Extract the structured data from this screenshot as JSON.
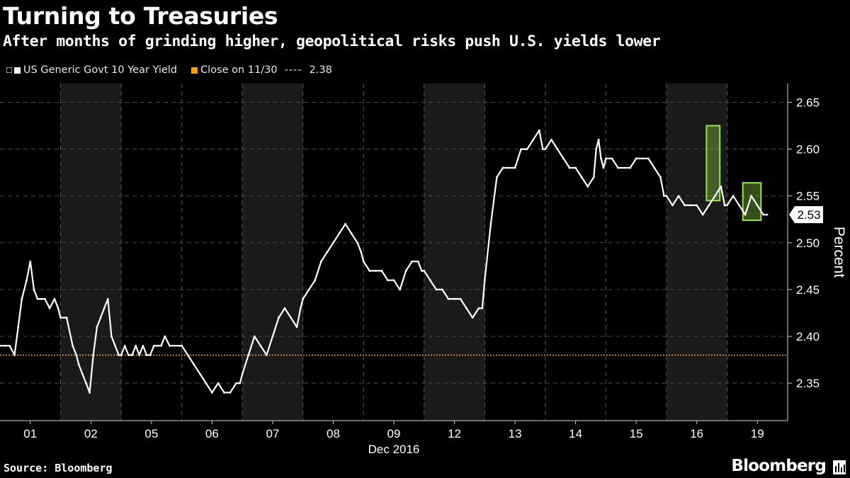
{
  "title": "Turning to Treasuries",
  "subtitle": "After months of grinding higher, geopolitical risks push U.S. yields lower",
  "legend": {
    "series_label": "US Generic Govt 10 Year Yield",
    "ref_label": "Close on 11/30",
    "ref_dashes": "----",
    "ref_value": "2.38"
  },
  "colors": {
    "background": "#000000",
    "band": "#1a1a1a",
    "line": "#ffffff",
    "reference": "#ff9a1f",
    "highlight": "#9be34a"
  },
  "source": "Source: Bloomberg",
  "brand": "Bloomberg",
  "chart_data": {
    "type": "line",
    "title": "Turning to Treasuries",
    "subtitle": "After months of grinding higher, geopolitical risks push U.S. yields lower",
    "xlabel": "Dec 2016",
    "ylabel": "Percent",
    "ylim": [
      2.31,
      2.67
    ],
    "yticks": [
      2.35,
      2.4,
      2.45,
      2.5,
      2.55,
      2.6,
      2.65
    ],
    "ytick_labels": [
      "2.35",
      "2.40",
      "2.45",
      "2.50",
      "2.55",
      "2.60",
      "2.65"
    ],
    "yaxis_side": "right",
    "days": [
      "01",
      "02",
      "05",
      "06",
      "07",
      "08",
      "09",
      "12",
      "13",
      "14",
      "15",
      "16",
      "19"
    ],
    "shaded_days": [
      "02",
      "07",
      "12",
      "16"
    ],
    "grid": true,
    "last_value": 2.53,
    "last_value_label": "2.53",
    "reference_line": {
      "label": "Close on 11/30",
      "value": 2.38
    },
    "series": [
      {
        "name": "US Generic Govt 10 Year Yield",
        "x": [
          0.0,
          0.08,
          0.16,
          0.24,
          0.3,
          0.36,
          0.44,
          0.5,
          0.56,
          0.62,
          0.68,
          0.74,
          0.82,
          0.9,
          0.96,
          1.0,
          1.1,
          1.2,
          1.26,
          1.3,
          1.36,
          1.42,
          1.48,
          1.54,
          1.6,
          1.66,
          1.72,
          1.78,
          1.84,
          1.9,
          1.96,
          2.0,
          2.06,
          2.12,
          2.18,
          2.24,
          2.3,
          2.36,
          2.42,
          2.48,
          2.54,
          2.6,
          2.66,
          2.72,
          2.8,
          2.88,
          2.96,
          3.0,
          3.1,
          3.2,
          3.3,
          3.4,
          3.5,
          3.6,
          3.7,
          3.8,
          3.9,
          3.96,
          4.0,
          4.1,
          4.2,
          4.3,
          4.4,
          4.5,
          4.6,
          4.7,
          4.8,
          4.9,
          4.96,
          5.0,
          5.1,
          5.2,
          5.3,
          5.4,
          5.5,
          5.6,
          5.7,
          5.8,
          5.9,
          5.96,
          6.0,
          6.1,
          6.2,
          6.3,
          6.4,
          6.5,
          6.6,
          6.7,
          6.8,
          6.9,
          6.96,
          7.0,
          7.1,
          7.2,
          7.3,
          7.4,
          7.5,
          7.6,
          7.7,
          7.8,
          7.9,
          7.96,
          8.0,
          8.1,
          8.2,
          8.3,
          8.4,
          8.5,
          8.6,
          8.7,
          8.8,
          8.9,
          8.96,
          9.0,
          9.1,
          9.2,
          9.3,
          9.4,
          9.5,
          9.6,
          9.7,
          9.8,
          9.84,
          9.88,
          9.92,
          9.96,
          10.0,
          10.1,
          10.2,
          10.3,
          10.4,
          10.5,
          10.6,
          10.7,
          10.8,
          10.9,
          10.96,
          11.0,
          11.1,
          11.2,
          11.3,
          11.4,
          11.5,
          11.6,
          11.7,
          11.8,
          11.9,
          11.96,
          12.0,
          12.1,
          12.2,
          12.3,
          12.4,
          12.5,
          12.6,
          12.66
        ],
        "values": [
          2.39,
          2.39,
          2.39,
          2.38,
          2.41,
          2.44,
          2.46,
          2.48,
          2.45,
          2.44,
          2.44,
          2.44,
          2.43,
          2.44,
          2.43,
          2.42,
          2.42,
          2.39,
          2.38,
          2.37,
          2.36,
          2.35,
          2.34,
          2.38,
          2.41,
          2.42,
          2.43,
          2.44,
          2.4,
          2.39,
          2.38,
          2.38,
          2.39,
          2.38,
          2.38,
          2.39,
          2.38,
          2.39,
          2.38,
          2.38,
          2.39,
          2.39,
          2.39,
          2.4,
          2.39,
          2.39,
          2.39,
          2.39,
          2.38,
          2.37,
          2.36,
          2.35,
          2.34,
          2.35,
          2.34,
          2.34,
          2.35,
          2.35,
          2.36,
          2.38,
          2.4,
          2.39,
          2.38,
          2.4,
          2.42,
          2.43,
          2.42,
          2.41,
          2.43,
          2.44,
          2.45,
          2.46,
          2.48,
          2.49,
          2.5,
          2.51,
          2.52,
          2.51,
          2.5,
          2.49,
          2.48,
          2.47,
          2.47,
          2.47,
          2.46,
          2.46,
          2.45,
          2.47,
          2.48,
          2.48,
          2.47,
          2.47,
          2.46,
          2.45,
          2.45,
          2.44,
          2.44,
          2.44,
          2.43,
          2.42,
          2.43,
          2.43,
          2.46,
          2.52,
          2.57,
          2.58,
          2.58,
          2.58,
          2.6,
          2.6,
          2.61,
          2.62,
          2.6,
          2.6,
          2.61,
          2.6,
          2.59,
          2.58,
          2.58,
          2.57,
          2.56,
          2.57,
          2.6,
          2.61,
          2.59,
          2.58,
          2.59,
          2.59,
          2.58,
          2.58,
          2.58,
          2.59,
          2.59,
          2.59,
          2.58,
          2.57,
          2.55,
          2.55,
          2.54,
          2.55,
          2.54,
          2.54,
          2.54,
          2.53,
          2.54,
          2.55,
          2.56,
          2.54,
          2.54,
          2.55,
          2.54,
          2.53,
          2.55,
          2.54,
          2.53,
          2.53
        ]
      }
    ],
    "highlights": [
      {
        "x_start": 11.66,
        "x_end": 11.88,
        "y_low": 2.545,
        "y_high": 2.625
      },
      {
        "x_start": 12.26,
        "x_end": 12.56,
        "y_low": 2.524,
        "y_high": 2.564
      }
    ]
  }
}
